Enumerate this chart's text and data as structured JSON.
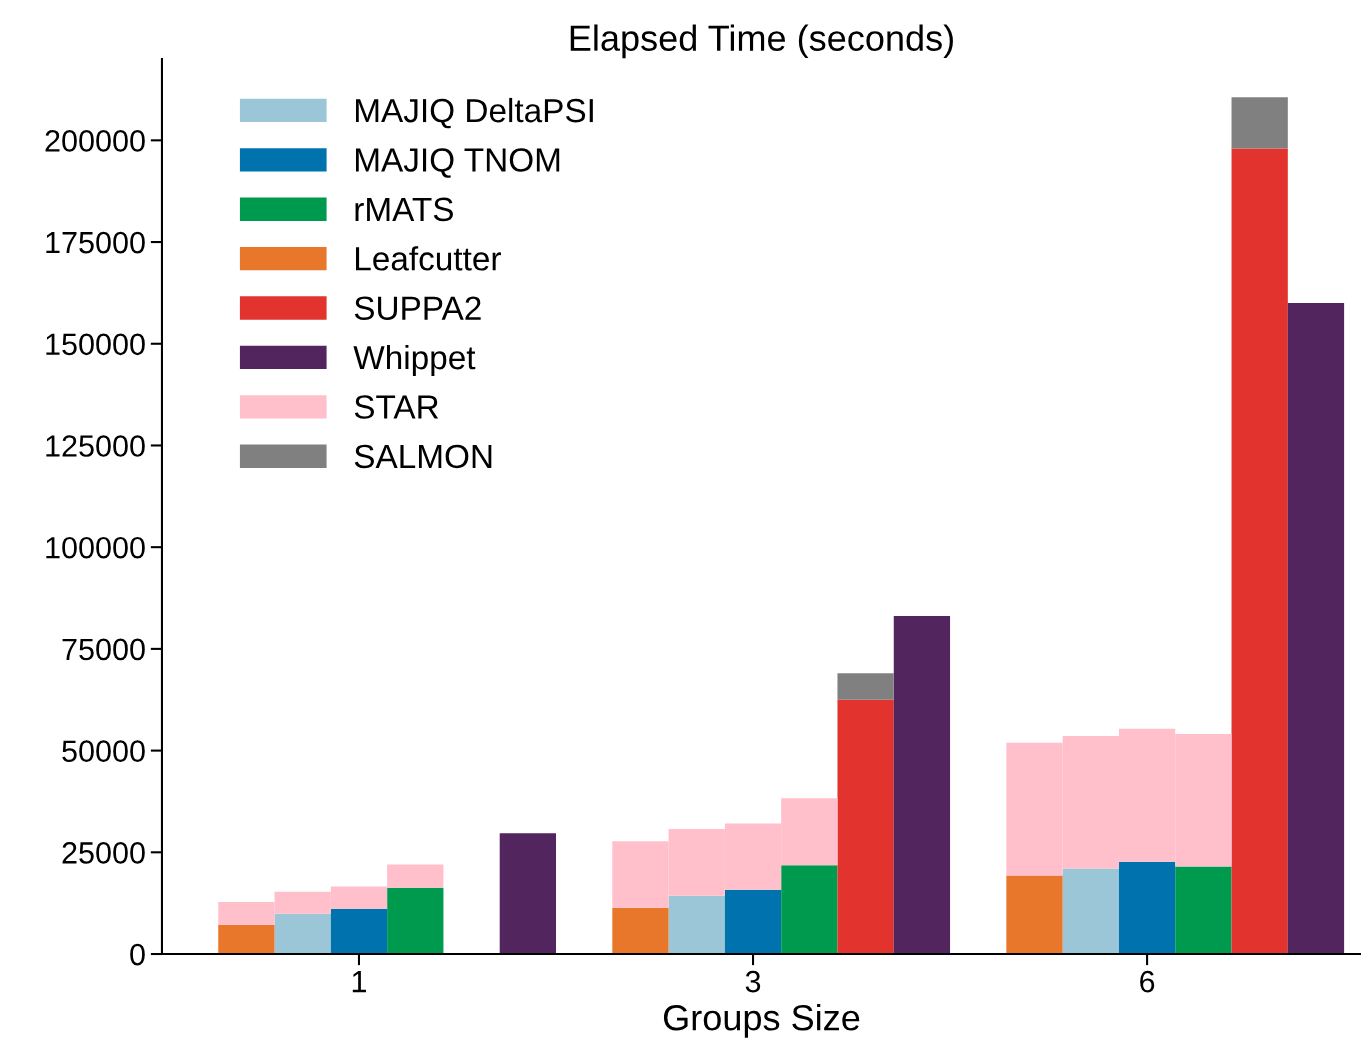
{
  "chart_data": {
    "type": "bar",
    "title": "Elapsed Time (seconds)",
    "xlabel": "Groups Size",
    "stacked": true,
    "legend": "top left",
    "grid": false,
    "categories": [
      null,
      null,
      "1",
      null,
      null,
      null,
      null,
      null,
      null,
      "3",
      null,
      null,
      null,
      null,
      null,
      null,
      "6",
      null,
      null,
      null
    ],
    "ylim": [
      0,
      220000
    ],
    "yticks": [
      0,
      25000,
      50000,
      75000,
      100000,
      125000,
      150000,
      175000,
      200000
    ],
    "series": [
      {
        "name": "MAJIQ DeltaPSI",
        "color": "#9ac6d8",
        "values": [
          null,
          9900,
          null,
          null,
          null,
          null,
          null,
          null,
          14300,
          null,
          null,
          null,
          null,
          null,
          null,
          21000,
          null,
          null,
          null,
          null
        ]
      },
      {
        "name": "MAJIQ TNOM",
        "color": "#0072ad",
        "values": [
          null,
          null,
          11100,
          null,
          null,
          null,
          null,
          null,
          null,
          15800,
          null,
          null,
          null,
          null,
          null,
          null,
          22700,
          null,
          null,
          null
        ]
      },
      {
        "name": "rMATS",
        "color": "#009a4e",
        "values": [
          null,
          null,
          null,
          16300,
          null,
          null,
          null,
          null,
          null,
          null,
          21800,
          null,
          null,
          null,
          null,
          null,
          null,
          21500,
          null,
          null
        ]
      },
      {
        "name": "Leafcutter",
        "color": "#e8762b",
        "values": [
          7200,
          null,
          null,
          null,
          null,
          null,
          null,
          11400,
          null,
          null,
          null,
          null,
          null,
          null,
          19300,
          null,
          null,
          null,
          null,
          null
        ]
      },
      {
        "name": "SUPPA2",
        "color": "#e2332e",
        "values": [
          null,
          null,
          null,
          null,
          null,
          null,
          null,
          null,
          null,
          null,
          null,
          62500,
          null,
          null,
          null,
          null,
          null,
          null,
          198000,
          null
        ]
      },
      {
        "name": "Whippet",
        "color": "#53255e",
        "values": [
          null,
          null,
          null,
          null,
          null,
          29700,
          null,
          null,
          null,
          null,
          null,
          null,
          83100,
          null,
          null,
          null,
          null,
          null,
          null,
          160000
        ]
      },
      {
        "name": "STAR",
        "color": "#ffc0cb",
        "values": [
          5600,
          5400,
          5500,
          5700,
          null,
          null,
          null,
          16300,
          16400,
          16300,
          16500,
          null,
          null,
          null,
          32600,
          32600,
          32700,
          32600,
          null,
          null
        ]
      },
      {
        "name": "SALMON",
        "color": "#808080",
        "values": [
          null,
          null,
          null,
          null,
          null,
          null,
          null,
          null,
          null,
          null,
          null,
          6500,
          null,
          null,
          null,
          null,
          null,
          null,
          12600,
          null
        ]
      }
    ]
  }
}
